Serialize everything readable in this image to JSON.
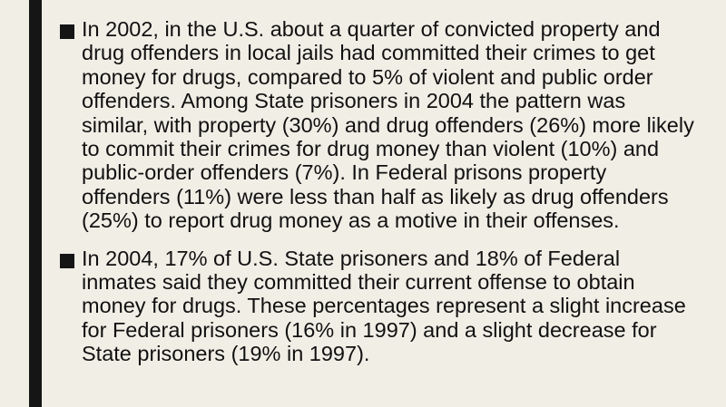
{
  "bullets": [
    "In 2002, in the U.S. about a quarter of convicted property and drug offenders in local jails had committed their crimes to get money for drugs, compared to 5% of violent and public order offenders. Among State prisoners in 2004 the pattern was similar, with property (30%) and drug offenders (26%) more likely to commit their crimes for drug money than violent (10%) and public-order offenders (7%). In Federal prisons property offenders (11%) were less than half as likely as drug offenders (25%) to report drug money as a motive in their offenses.",
    "In 2004, 17% of U.S. State prisoners and 18% of Federal inmates said they committed their current offense to obtain money for drugs. These percentages represent a slight increase for Federal prisoners (16% in 1997) and a slight decrease for State prisoners (19% in 1997)."
  ]
}
